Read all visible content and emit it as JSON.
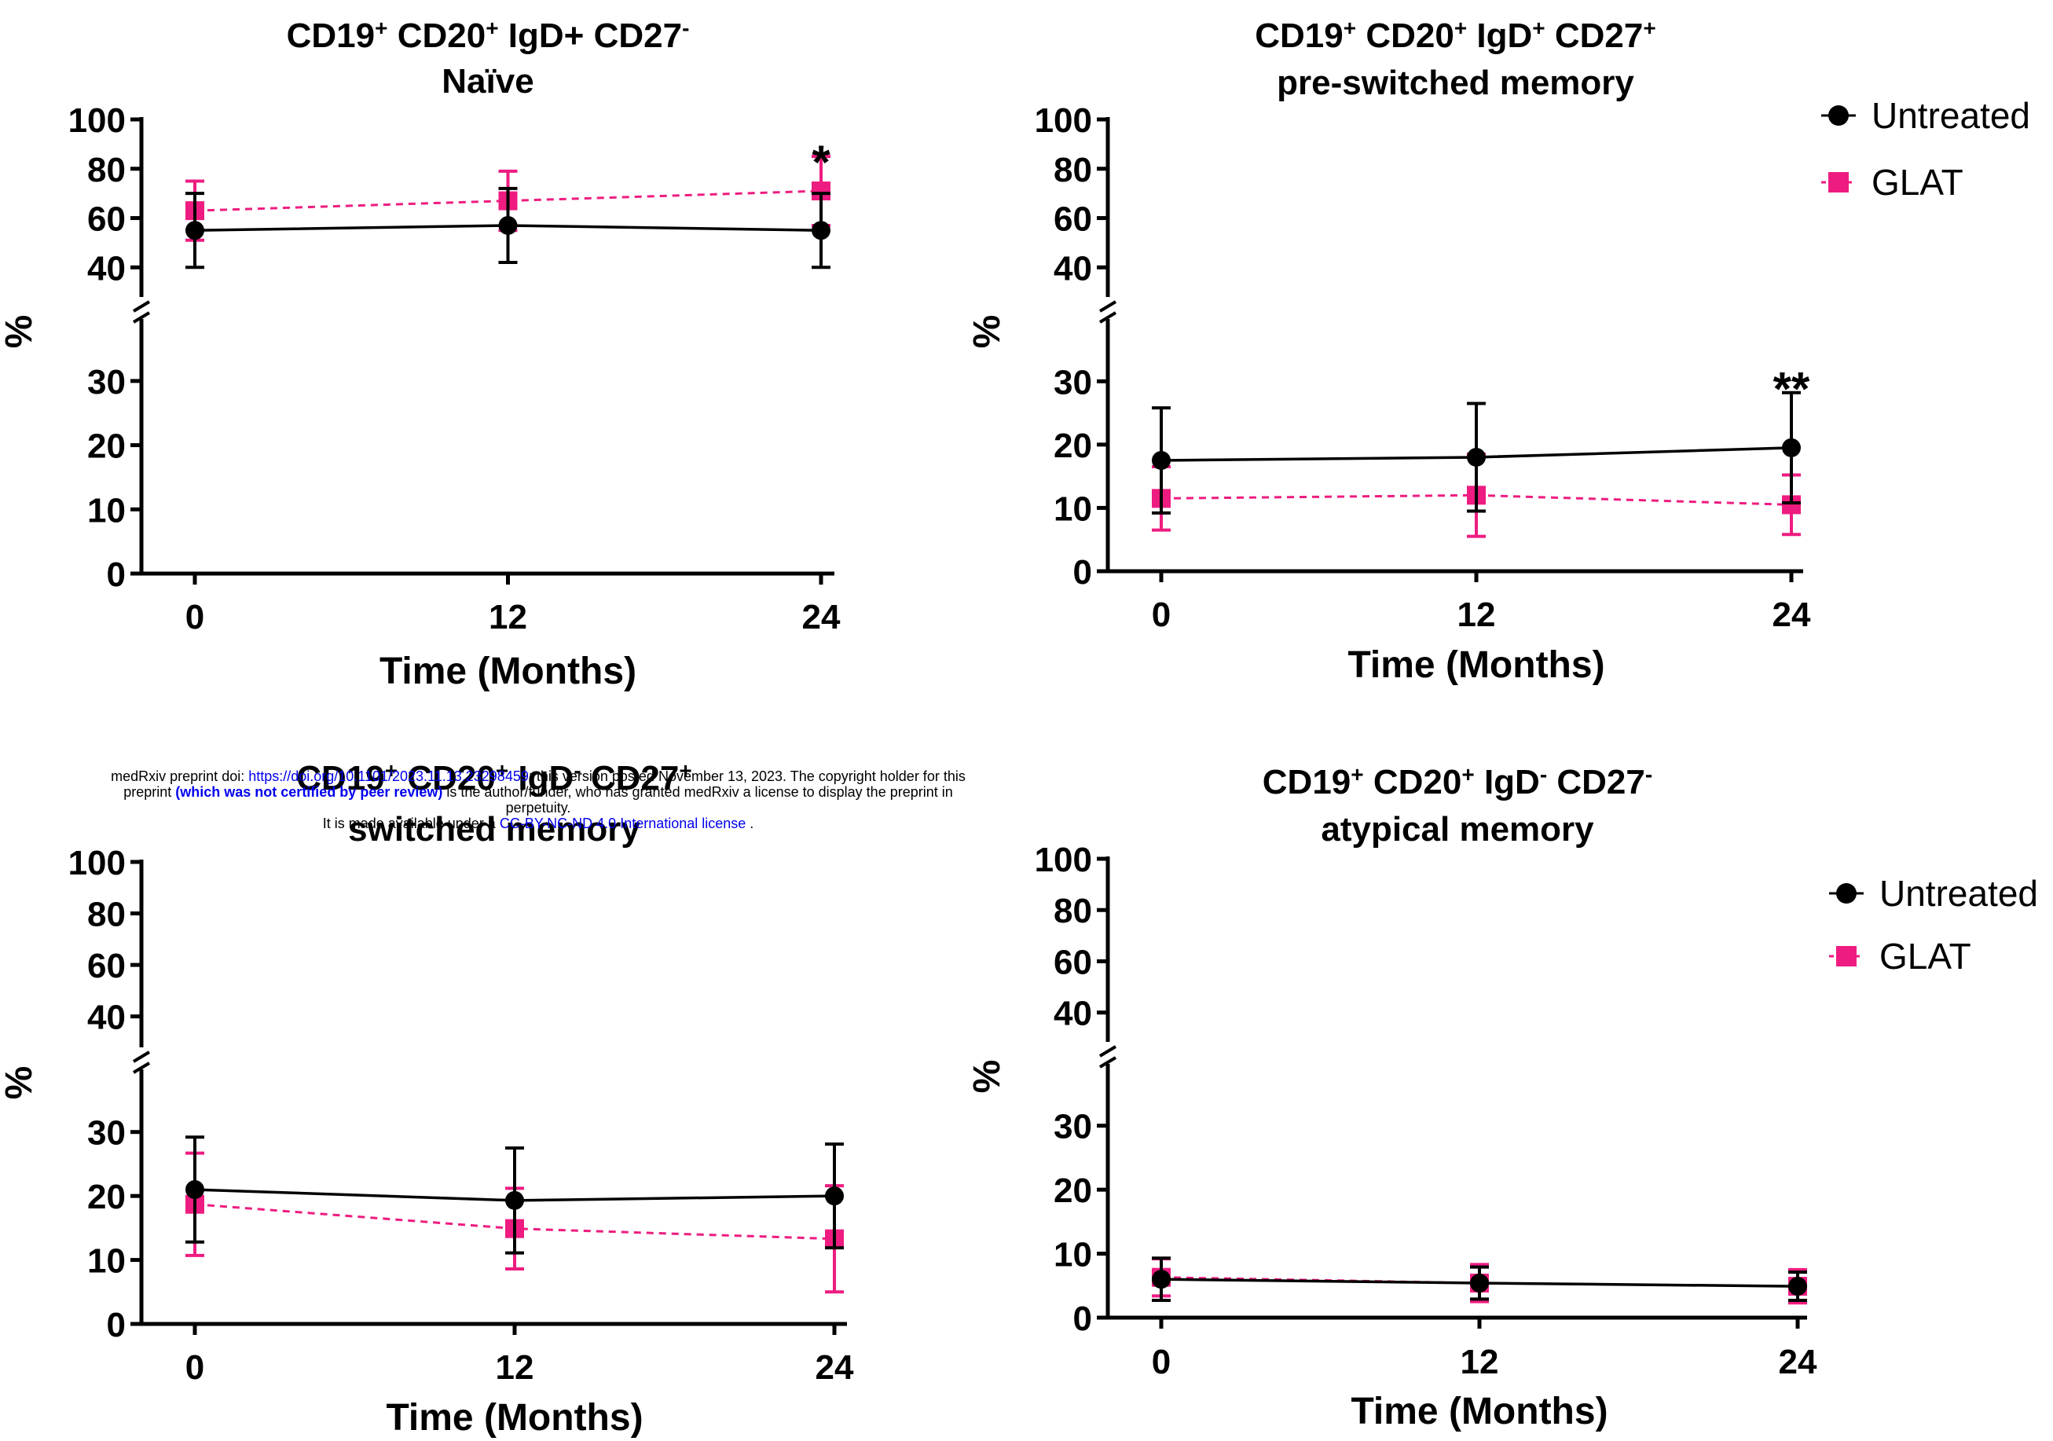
{
  "colors": {
    "untreated": "#000000",
    "glat": "#ee1c80"
  },
  "legend": {
    "items": [
      {
        "label": "Untreated",
        "marker": "circle",
        "color": "#000000"
      },
      {
        "label": "GLAT",
        "marker": "square",
        "color": "#ee1c80"
      }
    ]
  },
  "chart_data": [
    {
      "type": "line",
      "title": "CD19+ CD20+ IgD+ CD27- Naïve",
      "title_lines": [
        [
          {
            "t": "CD19"
          },
          {
            "t": "+",
            "sup": true
          },
          {
            "t": " CD20"
          },
          {
            "t": "+",
            "sup": true
          },
          {
            "t": " IgD+ CD27"
          },
          {
            "t": "-",
            "sup": true
          }
        ],
        [
          {
            "t": "Naïve"
          }
        ]
      ],
      "xlabel": "Time (Months)",
      "ylabel": "%",
      "x": [
        0,
        12,
        24
      ],
      "x_ticks": [
        "0",
        "12",
        "24"
      ],
      "y_ticks_lower": [
        "0",
        "10",
        "20",
        "30"
      ],
      "y_ticks_upper": [
        "40",
        "60",
        "80",
        "100"
      ],
      "ylim_lower": [
        0,
        35
      ],
      "ylim_upper": [
        35,
        100
      ],
      "axis_break": true,
      "grid": false,
      "legend": false,
      "series": [
        {
          "name": "Untreated",
          "values": [
            55,
            57,
            55
          ],
          "err": [
            15,
            15,
            15
          ],
          "marker": "circle",
          "line": "solid",
          "color": "#000000"
        },
        {
          "name": "GLAT",
          "values": [
            63,
            67,
            71
          ],
          "err": [
            12,
            12,
            14
          ],
          "marker": "square",
          "line": "dashed",
          "color": "#ee1c80"
        }
      ],
      "annotations": [
        {
          "x": 24,
          "y": 87,
          "text": "*"
        }
      ]
    },
    {
      "type": "line",
      "title": "CD19+ CD20+ IgD+ CD27+ pre-switched memory",
      "title_lines": [
        [
          {
            "t": "CD19"
          },
          {
            "t": "+",
            "sup": true
          },
          {
            "t": " CD20"
          },
          {
            "t": "+",
            "sup": true
          },
          {
            "t": " IgD"
          },
          {
            "t": "+",
            "sup": true
          },
          {
            "t": " CD27"
          },
          {
            "t": "+",
            "sup": true
          }
        ],
        [
          {
            "t": "pre-switched memory"
          }
        ]
      ],
      "xlabel": "Time (Months)",
      "ylabel": "%",
      "x": [
        0,
        12,
        24
      ],
      "x_ticks": [
        "0",
        "12",
        "24"
      ],
      "y_ticks_lower": [
        "0",
        "10",
        "20",
        "30"
      ],
      "y_ticks_upper": [
        "40",
        "60",
        "80",
        "100"
      ],
      "ylim_lower": [
        0,
        35
      ],
      "ylim_upper": [
        35,
        100
      ],
      "axis_break": true,
      "grid": false,
      "legend": true,
      "series": [
        {
          "name": "Untreated",
          "values": [
            17.5,
            18,
            19.5
          ],
          "err": [
            8.3,
            8.5,
            8.7
          ],
          "marker": "circle",
          "line": "solid",
          "color": "#000000"
        },
        {
          "name": "GLAT",
          "values": [
            11.5,
            12,
            10.5
          ],
          "err": [
            5,
            6.5,
            4.7
          ],
          "marker": "square",
          "line": "dashed",
          "color": "#ee1c80"
        }
      ],
      "annotations": [
        {
          "x": 24,
          "y": 30.5,
          "text": "**"
        }
      ]
    },
    {
      "type": "line",
      "title": "CD19+ CD20+ IgD- CD27+ switched memory",
      "title_lines": [
        [
          {
            "t": "CD19"
          },
          {
            "t": "+",
            "sup": true
          },
          {
            "t": " CD20"
          },
          {
            "t": "+",
            "sup": true
          },
          {
            "t": " IgD"
          },
          {
            "t": "-",
            "sup": true
          },
          {
            "t": " CD27"
          },
          {
            "t": "+",
            "sup": true
          }
        ],
        [
          {
            "t": "switched memory"
          }
        ]
      ],
      "xlabel": "Time (Months)",
      "ylabel": "%",
      "x": [
        0,
        12,
        24
      ],
      "x_ticks": [
        "0",
        "12",
        "24"
      ],
      "y_ticks_lower": [
        "0",
        "10",
        "20",
        "30"
      ],
      "y_ticks_upper": [
        "40",
        "60",
        "80",
        "100"
      ],
      "ylim_lower": [
        0,
        35
      ],
      "ylim_upper": [
        35,
        100
      ],
      "axis_break": true,
      "grid": false,
      "legend": false,
      "series": [
        {
          "name": "Untreated",
          "values": [
            21,
            19.3,
            20
          ],
          "err": [
            8.2,
            8.2,
            8.1
          ],
          "marker": "circle",
          "line": "solid",
          "color": "#000000"
        },
        {
          "name": "GLAT",
          "values": [
            18.7,
            14.9,
            13.3
          ],
          "err": [
            8,
            6.3,
            8.3
          ],
          "marker": "square",
          "line": "dashed",
          "color": "#ee1c80"
        }
      ],
      "annotations": []
    },
    {
      "type": "line",
      "title": "CD19+ CD20+ IgD- CD27- atypical memory",
      "title_lines": [
        [
          {
            "t": "CD19"
          },
          {
            "t": "+",
            "sup": true
          },
          {
            "t": " CD20"
          },
          {
            "t": "+",
            "sup": true
          },
          {
            "t": " IgD"
          },
          {
            "t": "-",
            "sup": true
          },
          {
            "t": " CD27"
          },
          {
            "t": "-",
            "sup": true
          }
        ],
        [
          {
            "t": "atypical memory"
          }
        ]
      ],
      "xlabel": "Time (Months)",
      "ylabel": "%",
      "x": [
        0,
        12,
        24
      ],
      "x_ticks": [
        "0",
        "12",
        "24"
      ],
      "y_ticks_lower": [
        "0",
        "10",
        "20",
        "30"
      ],
      "y_ticks_upper": [
        "40",
        "60",
        "80",
        "100"
      ],
      "ylim_lower": [
        0,
        35
      ],
      "ylim_upper": [
        35,
        100
      ],
      "axis_break": true,
      "grid": false,
      "legend": true,
      "series": [
        {
          "name": "Untreated",
          "values": [
            6,
            5.4,
            4.9
          ],
          "err": [
            3.3,
            2.5,
            2.2
          ],
          "marker": "circle",
          "line": "solid",
          "color": "#000000"
        },
        {
          "name": "GLAT",
          "values": [
            6.3,
            5.4,
            4.9
          ],
          "err": [
            2.9,
            2.9,
            2.6
          ],
          "marker": "square",
          "line": "dashed",
          "color": "#ee1c80"
        }
      ],
      "annotations": []
    }
  ],
  "preprint_notice": {
    "line1_prefix": "medRxiv preprint doi: ",
    "line1_link": "https://doi.org/10.1101/2023.11.13.23298459",
    "line1_suffix": "; this version posted November 13, 2023. The copyright holder for this",
    "line2_prefix": "preprint ",
    "line2_bold": "(which was not certified by peer review)",
    "line2_suffix": " is the author/funder, who has granted medRxiv a license to display the preprint in",
    "line3": "perpetuity.",
    "line4_prefix": "It is made available under a ",
    "line4_link": "CC-BY-NC-ND 4.0 International license",
    "line4_suffix": " ."
  }
}
